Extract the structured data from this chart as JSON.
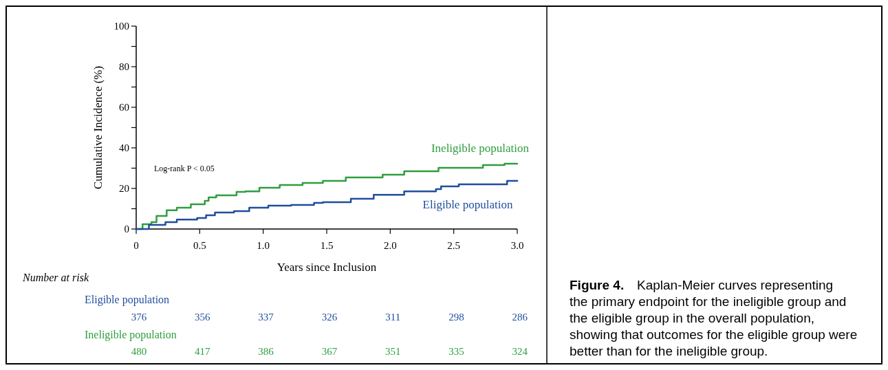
{
  "chart_data": {
    "type": "step",
    "xlabel": "Years since Inclusion",
    "ylabel": "Cumulative Incidence (%)",
    "xlim": [
      0,
      3
    ],
    "ylim": [
      0,
      100
    ],
    "xticks": [
      0,
      {
        "value": 0.5,
        "label": "0.5"
      },
      {
        "value": 1,
        "label": "1.0"
      },
      {
        "value": 1.5,
        "label": "1.5"
      },
      {
        "value": 2,
        "label": "2.0"
      },
      {
        "value": 2.5,
        "label": "2.5"
      },
      {
        "value": 3,
        "label": "3.0"
      }
    ],
    "yticks": [
      0,
      {
        "value": 10,
        "label": null
      },
      20,
      {
        "value": 30,
        "label": null
      },
      40,
      {
        "value": 50,
        "label": null
      },
      60,
      {
        "value": 70,
        "label": null
      },
      80,
      {
        "value": 90,
        "label": null
      },
      100
    ],
    "grid": false,
    "marker": "none",
    "series": [
      {
        "name": "Ineligible population",
        "color": "#2e9e3e",
        "x": [
          0,
          0.05,
          0.12,
          0.16,
          0.24,
          0.32,
          0.43,
          0.54,
          0.57,
          0.63,
          0.79,
          0.86,
          0.97,
          1.13,
          1.31,
          1.47,
          1.65,
          1.94,
          2.11,
          2.38,
          2.73,
          2.9,
          3.0
        ],
        "values": [
          0,
          2.4,
          3.4,
          6.4,
          9.2,
          10.5,
          12.2,
          13.9,
          15.6,
          16.6,
          18.3,
          18.6,
          20.3,
          21.7,
          22.7,
          23.7,
          25.4,
          26.8,
          28.5,
          30.2,
          31.5,
          32.2,
          32.5
        ]
      },
      {
        "name": "Eligible population",
        "color": "#1f4e9c",
        "x": [
          0,
          0.1,
          0.23,
          0.32,
          0.48,
          0.55,
          0.62,
          0.77,
          0.89,
          1.04,
          1.22,
          1.4,
          1.47,
          1.69,
          1.87,
          2.11,
          2.36,
          2.4,
          2.54,
          2.92,
          3.0
        ],
        "values": [
          0,
          2.0,
          3.4,
          4.7,
          5.4,
          6.8,
          8.1,
          8.8,
          10.5,
          11.5,
          11.9,
          12.9,
          13.2,
          14.9,
          16.9,
          18.6,
          19.7,
          21.0,
          22.0,
          23.7,
          24.1
        ]
      }
    ],
    "annotations": [
      "Log-rank P < 0.05",
      "Figure 4.",
      "Kaplan-Meier curves representing the primary endpoint for the ineligible group and the eligible group in the overall population, showing that outcomes for the eligible group were better than for the ineligible group.",
      "Number at risk",
      "Eligible population",
      "376",
      "356",
      "337",
      "326",
      "311",
      "298",
      "286",
      "Ineligible population",
      "480",
      "417",
      "386",
      "367",
      "351",
      "335",
      "324"
    ]
  }
}
